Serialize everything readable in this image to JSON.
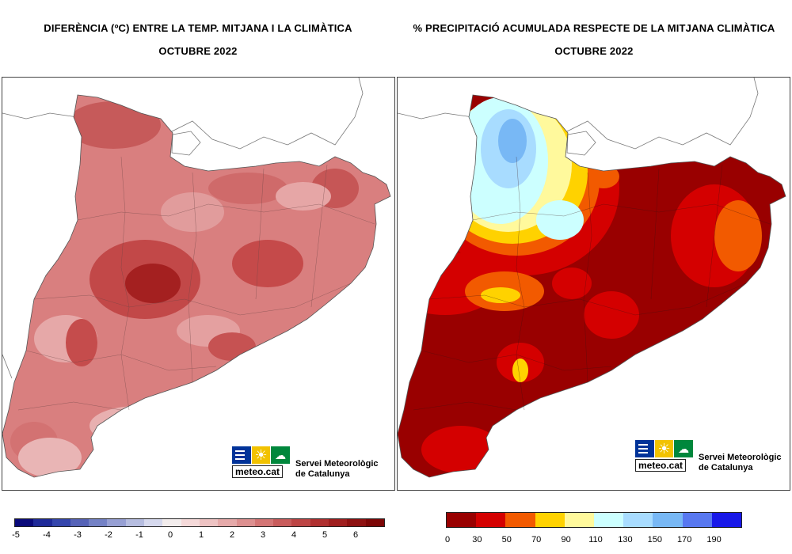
{
  "left": {
    "title_line1": "DIFERÈNCIA (ºC) ENTRE LA TEMP. MITJANA I LA CLIMÀTICA",
    "title_line2": "OCTUBRE 2022",
    "legend": {
      "colors": [
        "#0a0a7a",
        "#1f2a99",
        "#3546ad",
        "#5663b8",
        "#7482c6",
        "#97a0d4",
        "#b6bde0",
        "#d6d9ee",
        "#f3eded",
        "#f5d9d9",
        "#eec3c3",
        "#e6aaaa",
        "#dd9090",
        "#d47575",
        "#c95c5c",
        "#bd4545",
        "#b03030",
        "#a01f1f",
        "#8e1111",
        "#7c0606"
      ],
      "tick_labels": [
        "-5",
        "-4",
        "-3",
        "-2",
        "-1",
        "0",
        "1",
        "2",
        "3",
        "4",
        "5",
        "6"
      ]
    }
  },
  "right": {
    "title_line1": "% PRECIPITACIÓ ACUMULADA RESPECTE DE LA MITJANA CLIMÀTICA",
    "title_line2": "OCTUBRE 2022",
    "legend": {
      "colors": [
        "#990000",
        "#d40000",
        "#f25a00",
        "#ffd200",
        "#fff99c",
        "#ccffff",
        "#a8dcff",
        "#78b8f5",
        "#5878f0",
        "#1818e8"
      ],
      "tick_labels": [
        "0",
        "30",
        "50",
        "70",
        "90",
        "110",
        "130",
        "150",
        "170",
        "190"
      ]
    }
  },
  "logo": {
    "brand": "meteo.cat",
    "org_line1": "Servei Meteorològic",
    "org_line2": "de Catalunya",
    "colors": {
      "blue": "#003399",
      "yellow": "#f2c200",
      "green": "#00873c"
    }
  }
}
